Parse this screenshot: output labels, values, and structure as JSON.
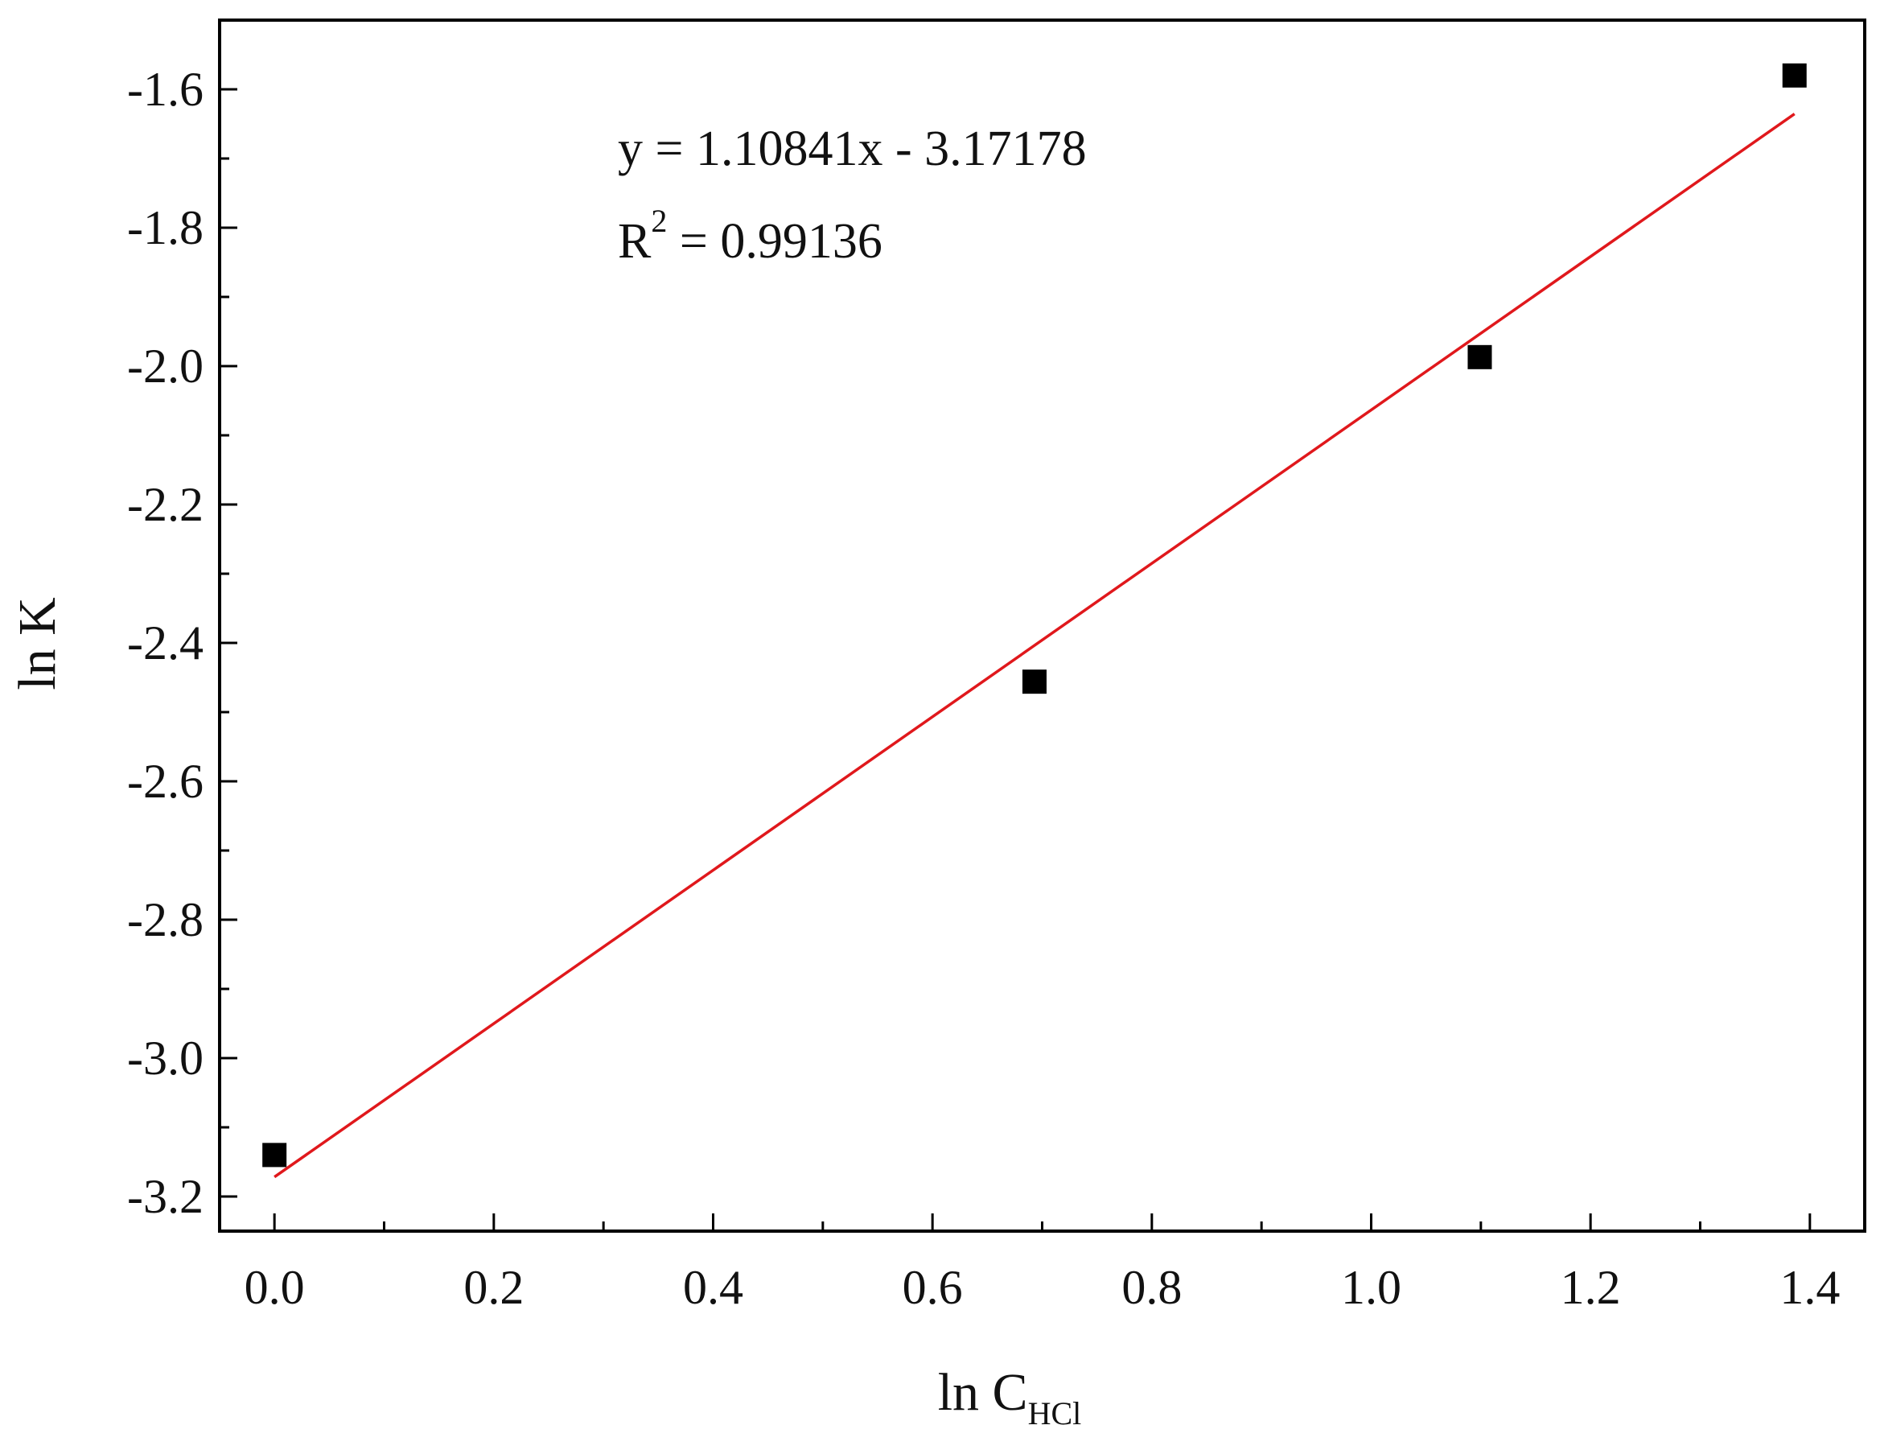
{
  "chart_data": {
    "type": "scatter",
    "x_label": {
      "main": "ln C",
      "subscript": "HCl"
    },
    "y_label": "ln K",
    "xlim": [
      -0.05,
      1.45
    ],
    "ylim": [
      -3.25,
      -1.5
    ],
    "x_ticks": [
      0.0,
      0.2,
      0.4,
      0.6,
      0.8,
      1.0,
      1.2,
      1.4
    ],
    "x_tick_labels": [
      "0.0",
      "0.2",
      "0.4",
      "0.6",
      "0.8",
      "1.0",
      "1.2",
      "1.4"
    ],
    "x_minor_ticks": [
      0.1,
      0.3,
      0.5,
      0.7,
      0.9,
      1.1,
      1.3
    ],
    "y_ticks": [
      -3.2,
      -3.0,
      -2.8,
      -2.6,
      -2.4,
      -2.2,
      -2.0,
      -1.8,
      -1.6
    ],
    "y_tick_labels": [
      "-3.2",
      "-3.0",
      "-2.8",
      "-2.6",
      "-2.4",
      "-2.2",
      "-2.0",
      "-1.8",
      "-1.6"
    ],
    "y_minor_ticks": [
      -3.1,
      -2.9,
      -2.7,
      -2.5,
      -2.3,
      -2.1,
      -1.9,
      -1.7
    ],
    "series": [
      {
        "marker": "square",
        "color": "#000000",
        "points": [
          {
            "x": 0.0,
            "y": -3.14
          },
          {
            "x": 0.693,
            "y": -2.456
          },
          {
            "x": 1.099,
            "y": -1.987
          },
          {
            "x": 1.386,
            "y": -1.58
          }
        ]
      }
    ],
    "fit_line": {
      "color": "#e0181c",
      "slope": 1.10841,
      "intercept": -3.17178,
      "x_range": [
        0.0,
        1.386
      ]
    },
    "annotations": {
      "equation": "y = 1.10841x - 3.17178",
      "r2_main": "R",
      "r2_sup": "2",
      "r2_value": " = 0.99136"
    },
    "grid": false,
    "legend": "none"
  }
}
